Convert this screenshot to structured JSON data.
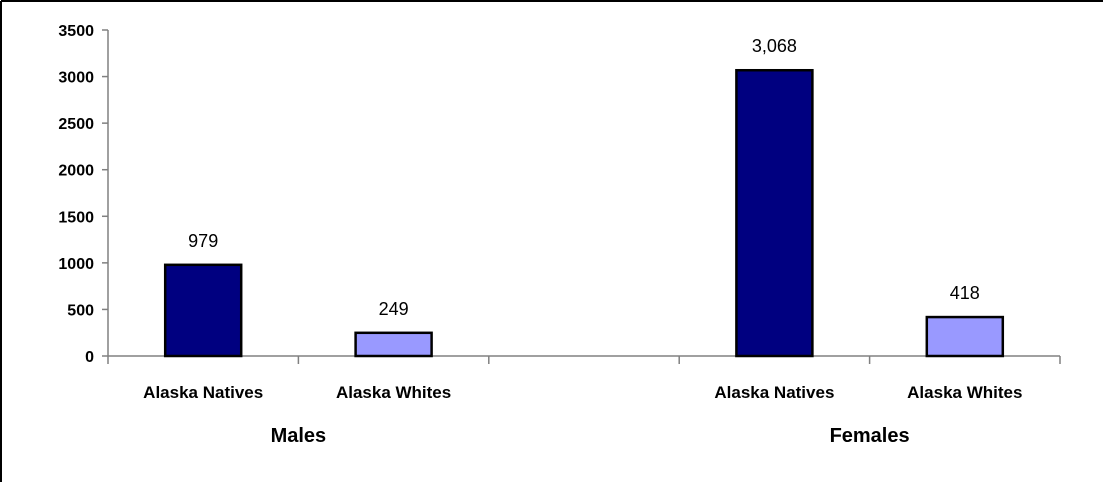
{
  "chart_data": {
    "type": "bar",
    "title": "",
    "xlabel": "",
    "ylabel": "",
    "ylim": [
      0,
      3500
    ],
    "yticks": [
      0,
      500,
      1000,
      1500,
      2000,
      2500,
      3000,
      3500
    ],
    "grid": false,
    "groups": [
      {
        "name": "Males",
        "bars": [
          {
            "category": "Alaska Natives",
            "value": 979,
            "label": "979",
            "color": "#000080"
          },
          {
            "category": "Alaska Whites",
            "value": 249,
            "label": "249",
            "color": "#9999ff"
          }
        ]
      },
      {
        "name": "Females",
        "bars": [
          {
            "category": "Alaska Natives",
            "value": 3068,
            "label": "3,068",
            "color": "#000080"
          },
          {
            "category": "Alaska Whites",
            "value": 418,
            "label": "418",
            "color": "#9999ff"
          }
        ]
      }
    ]
  }
}
